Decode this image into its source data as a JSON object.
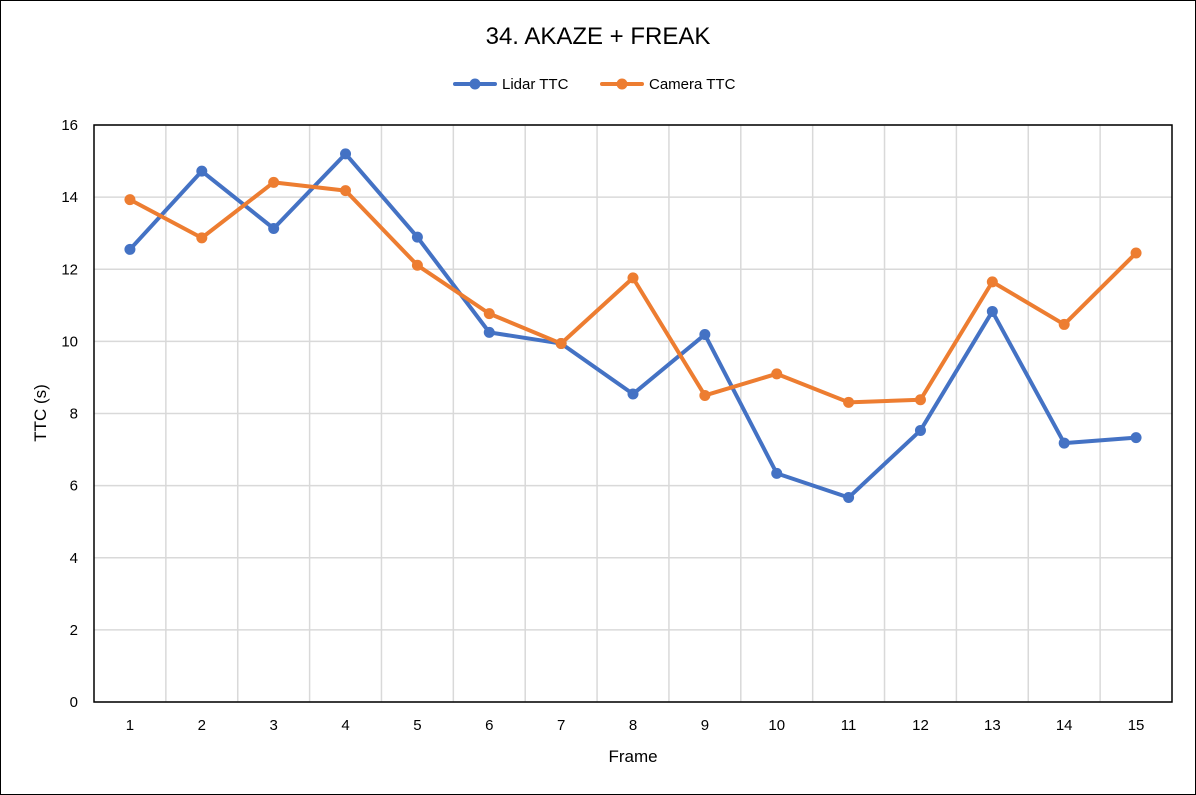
{
  "chart_data": {
    "type": "line",
    "title": "34. AKAZE + FREAK",
    "xlabel": "Frame",
    "ylabel": "TTC (s)",
    "categories": [
      "1",
      "2",
      "3",
      "4",
      "5",
      "6",
      "7",
      "8",
      "9",
      "10",
      "11",
      "12",
      "13",
      "14",
      "15"
    ],
    "ylim": [
      0,
      16
    ],
    "yticks": [
      "0",
      "2",
      "4",
      "6",
      "8",
      "10",
      "12",
      "14",
      "16"
    ],
    "grid": true,
    "legend": "top",
    "series": [
      {
        "name": "Lidar TTC",
        "color": "#4472C4",
        "values": [
          12.55,
          14.72,
          13.13,
          15.2,
          12.89,
          10.25,
          9.94,
          8.54,
          10.19,
          6.34,
          5.67,
          7.53,
          10.83,
          7.18,
          7.33
        ]
      },
      {
        "name": "Camera TTC",
        "color": "#ED7D31",
        "values": [
          13.93,
          12.87,
          14.41,
          14.18,
          12.11,
          10.77,
          9.94,
          11.76,
          8.5,
          9.1,
          8.31,
          8.38,
          11.65,
          10.47,
          12.45
        ]
      }
    ]
  }
}
